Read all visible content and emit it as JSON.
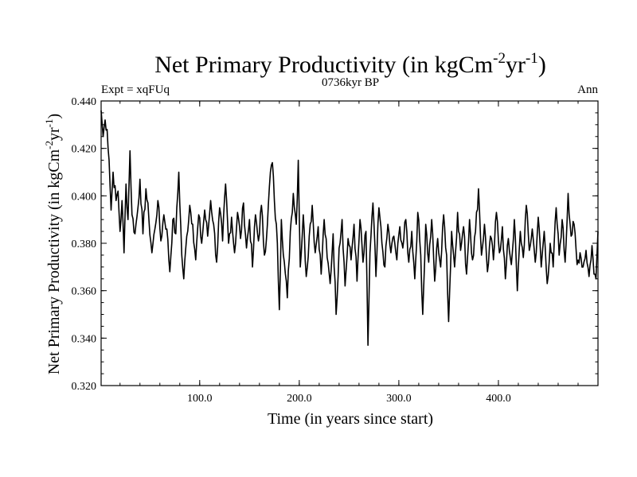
{
  "chart_data": {
    "type": "line",
    "title_main": "Net Primary Productivity (in kgCm",
    "title_sup1": "-2",
    "title_mid": "yr",
    "title_sup2": "-1",
    "title_end": ")",
    "subtitle": "0736kyr BP",
    "left_label": "Expt = xqFUq",
    "right_label": "Ann",
    "xlabel": "Time (in years since start)",
    "ylabel_main": "Net Primary Productivity (in kgCm",
    "ylabel_sup1": "-2",
    "ylabel_mid": "yr",
    "ylabel_sup2": "-1",
    "ylabel_end": ")",
    "xlim": [
      1,
      500
    ],
    "ylim": [
      0.32,
      0.44
    ],
    "x_ticks": [
      100,
      200,
      300,
      400
    ],
    "x_tick_labels": [
      "100.0",
      "200.0",
      "300.0",
      "400.0"
    ],
    "y_ticks": [
      0.32,
      0.34,
      0.36,
      0.38,
      0.4,
      0.42,
      0.44
    ],
    "y_tick_labels": [
      "0.320",
      "0.340",
      "0.360",
      "0.380",
      "0.400",
      "0.420",
      "0.440"
    ],
    "series_keypoints": [
      [
        1,
        0.436
      ],
      [
        3,
        0.425
      ],
      [
        5,
        0.432
      ],
      [
        7,
        0.428
      ],
      [
        9,
        0.415
      ],
      [
        11,
        0.394
      ],
      [
        13,
        0.41
      ],
      [
        16,
        0.398
      ],
      [
        18,
        0.402
      ],
      [
        20,
        0.385
      ],
      [
        22,
        0.398
      ],
      [
        24,
        0.376
      ],
      [
        26,
        0.405
      ],
      [
        28,
        0.39
      ],
      [
        30,
        0.419
      ],
      [
        32,
        0.392
      ],
      [
        35,
        0.384
      ],
      [
        38,
        0.395
      ],
      [
        40,
        0.407
      ],
      [
        43,
        0.384
      ],
      [
        46,
        0.403
      ],
      [
        49,
        0.39
      ],
      [
        52,
        0.376
      ],
      [
        55,
        0.386
      ],
      [
        58,
        0.398
      ],
      [
        61,
        0.381
      ],
      [
        64,
        0.392
      ],
      [
        67,
        0.386
      ],
      [
        70,
        0.368
      ],
      [
        73,
        0.39
      ],
      [
        76,
        0.384
      ],
      [
        79,
        0.41
      ],
      [
        82,
        0.375
      ],
      [
        84,
        0.365
      ],
      [
        87,
        0.383
      ],
      [
        90,
        0.396
      ],
      [
        93,
        0.388
      ],
      [
        96,
        0.373
      ],
      [
        99,
        0.392
      ],
      [
        102,
        0.38
      ],
      [
        105,
        0.394
      ],
      [
        108,
        0.383
      ],
      [
        111,
        0.398
      ],
      [
        114,
        0.388
      ],
      [
        117,
        0.372
      ],
      [
        120,
        0.395
      ],
      [
        123,
        0.381
      ],
      [
        126,
        0.405
      ],
      [
        129,
        0.38
      ],
      [
        132,
        0.391
      ],
      [
        135,
        0.376
      ],
      [
        138,
        0.393
      ],
      [
        141,
        0.382
      ],
      [
        144,
        0.397
      ],
      [
        147,
        0.378
      ],
      [
        150,
        0.39
      ],
      [
        153,
        0.37
      ],
      [
        156,
        0.392
      ],
      [
        159,
        0.381
      ],
      [
        162,
        0.396
      ],
      [
        165,
        0.375
      ],
      [
        168,
        0.388
      ],
      [
        171,
        0.41
      ],
      [
        173,
        0.414
      ],
      [
        175,
        0.398
      ],
      [
        178,
        0.38
      ],
      [
        180,
        0.352
      ],
      [
        182,
        0.39
      ],
      [
        185,
        0.372
      ],
      [
        188,
        0.357
      ],
      [
        191,
        0.385
      ],
      [
        194,
        0.401
      ],
      [
        197,
        0.388
      ],
      [
        199,
        0.415
      ],
      [
        201,
        0.37
      ],
      [
        204,
        0.392
      ],
      [
        207,
        0.366
      ],
      [
        210,
        0.383
      ],
      [
        213,
        0.396
      ],
      [
        216,
        0.376
      ],
      [
        219,
        0.387
      ],
      [
        222,
        0.367
      ],
      [
        225,
        0.39
      ],
      [
        228,
        0.374
      ],
      [
        231,
        0.363
      ],
      [
        234,
        0.384
      ],
      [
        237,
        0.35
      ],
      [
        240,
        0.378
      ],
      [
        243,
        0.39
      ],
      [
        246,
        0.362
      ],
      [
        249,
        0.382
      ],
      [
        252,
        0.373
      ],
      [
        255,
        0.388
      ],
      [
        258,
        0.364
      ],
      [
        261,
        0.39
      ],
      [
        264,
        0.372
      ],
      [
        267,
        0.385
      ],
      [
        269,
        0.337
      ],
      [
        271,
        0.376
      ],
      [
        274,
        0.397
      ],
      [
        277,
        0.366
      ],
      [
        280,
        0.395
      ],
      [
        283,
        0.38
      ],
      [
        286,
        0.37
      ],
      [
        289,
        0.388
      ],
      [
        292,
        0.376
      ],
      [
        295,
        0.383
      ],
      [
        298,
        0.373
      ],
      [
        301,
        0.387
      ],
      [
        304,
        0.378
      ],
      [
        307,
        0.39
      ],
      [
        310,
        0.372
      ],
      [
        313,
        0.385
      ],
      [
        316,
        0.365
      ],
      [
        319,
        0.393
      ],
      [
        322,
        0.375
      ],
      [
        324,
        0.35
      ],
      [
        327,
        0.388
      ],
      [
        330,
        0.372
      ],
      [
        333,
        0.39
      ],
      [
        336,
        0.364
      ],
      [
        339,
        0.382
      ],
      [
        342,
        0.37
      ],
      [
        345,
        0.392
      ],
      [
        348,
        0.375
      ],
      [
        350,
        0.347
      ],
      [
        353,
        0.385
      ],
      [
        356,
        0.37
      ],
      [
        359,
        0.393
      ],
      [
        362,
        0.377
      ],
      [
        365,
        0.387
      ],
      [
        368,
        0.367
      ],
      [
        371,
        0.39
      ],
      [
        374,
        0.373
      ],
      [
        377,
        0.385
      ],
      [
        380,
        0.403
      ],
      [
        383,
        0.375
      ],
      [
        386,
        0.388
      ],
      [
        389,
        0.368
      ],
      [
        392,
        0.383
      ],
      [
        395,
        0.373
      ],
      [
        398,
        0.393
      ],
      [
        401,
        0.376
      ],
      [
        404,
        0.387
      ],
      [
        407,
        0.365
      ],
      [
        410,
        0.382
      ],
      [
        413,
        0.371
      ],
      [
        416,
        0.39
      ],
      [
        419,
        0.36
      ],
      [
        422,
        0.385
      ],
      [
        425,
        0.374
      ],
      [
        428,
        0.396
      ],
      [
        431,
        0.377
      ],
      [
        434,
        0.386
      ],
      [
        437,
        0.372
      ],
      [
        440,
        0.391
      ],
      [
        443,
        0.37
      ],
      [
        446,
        0.385
      ],
      [
        449,
        0.363
      ],
      [
        452,
        0.38
      ],
      [
        455,
        0.37
      ],
      [
        458,
        0.395
      ],
      [
        461,
        0.375
      ],
      [
        464,
        0.39
      ],
      [
        467,
        0.372
      ],
      [
        470,
        0.401
      ],
      [
        473,
        0.383
      ],
      [
        476,
        0.388
      ],
      [
        479,
        0.371
      ],
      [
        482,
        0.376
      ],
      [
        485,
        0.37
      ],
      [
        488,
        0.377
      ],
      [
        491,
        0.366
      ],
      [
        494,
        0.379
      ],
      [
        496,
        0.367
      ],
      [
        498,
        0.365
      ],
      [
        500,
        0.385
      ]
    ],
    "colors": {
      "line": "#000000",
      "axes": "#000000",
      "background": "#ffffff"
    }
  }
}
